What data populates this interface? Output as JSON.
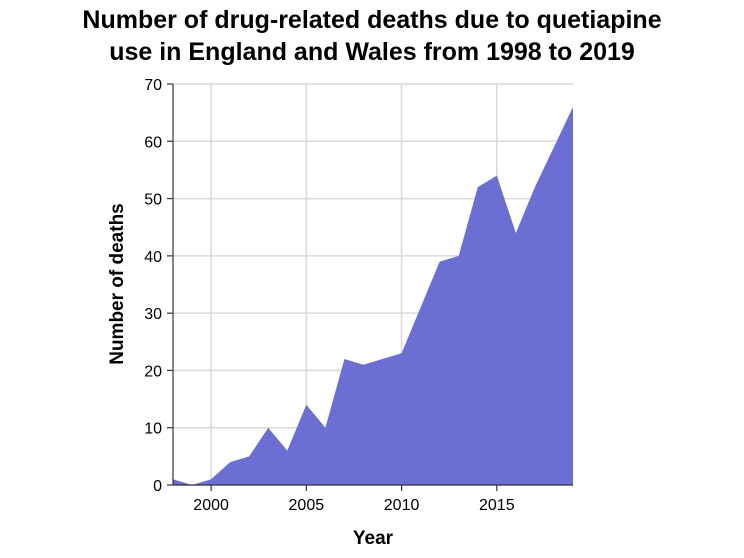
{
  "chart_data": {
    "type": "area",
    "title_lines": [
      "Number of drug-related deaths due to quetiapine",
      "use in England and Wales from 1998 to 2019"
    ],
    "xlabel": "Year",
    "ylabel": "Number of deaths",
    "xlim": [
      1998,
      2019
    ],
    "ylim": [
      0,
      70
    ],
    "x_ticks": [
      2000,
      2005,
      2010,
      2015
    ],
    "y_ticks": [
      0,
      10,
      20,
      30,
      40,
      50,
      60,
      70
    ],
    "grid": true,
    "fill_color": "#6b6fd3",
    "series": [
      {
        "x": [
          1998,
          1999,
          2000,
          2001,
          2002,
          2003,
          2004,
          2005,
          2006,
          2007,
          2008,
          2009,
          2010,
          2011,
          2012,
          2013,
          2014,
          2015,
          2016,
          2017,
          2018,
          2019
        ],
        "values": [
          1,
          0,
          1,
          4,
          5,
          10,
          6,
          14,
          10,
          22,
          21,
          22,
          23,
          31,
          39,
          40,
          52,
          54,
          44,
          52,
          59,
          66
        ]
      }
    ]
  }
}
